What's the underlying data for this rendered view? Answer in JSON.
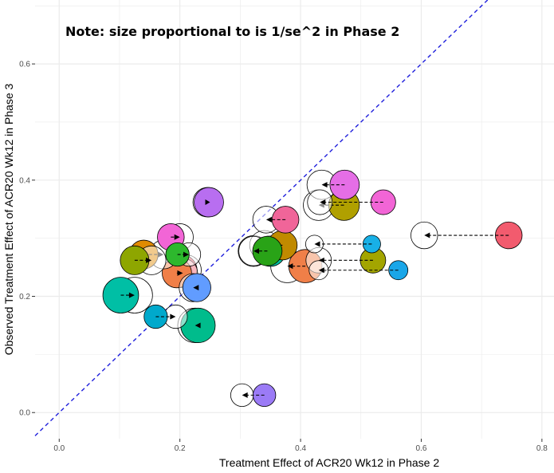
{
  "chart_data": {
    "type": "scatter",
    "title": "",
    "annotation": "Note: size proportional to is 1/se^2 in Phase 2",
    "xlabel": "Treatment Effect of ACR20 Wk12 in Phase 2",
    "ylabel": "Observed Treatment Effect of ACR20 Wk12 in Phase 3",
    "xlim": [
      -0.04,
      0.82
    ],
    "ylim": [
      -0.045,
      0.71
    ],
    "x_ticks": [
      0.0,
      0.2,
      0.4,
      0.6,
      0.8
    ],
    "x_tick_labels": [
      "0.0",
      "0.2",
      "0.4",
      "0.6",
      "0.8"
    ],
    "y_ticks": [
      0.0,
      0.2,
      0.4,
      0.6
    ],
    "y_tick_labels": [
      "0.0",
      "0.2",
      "0.4",
      "0.6"
    ],
    "grid": true,
    "legend": "none",
    "reference_line": {
      "type": "identity",
      "slope": 1,
      "intercept": 0,
      "style": "dashed",
      "color": "#1f1fdc"
    },
    "colors": {
      "grid": "#ebebeb",
      "arrow": "#000000",
      "outline": "#000000"
    },
    "pairs": [
      {
        "phase2_x": 0.745,
        "shrunk_x": 0.605,
        "y": 0.305,
        "size": 1.0,
        "color": "#F25B6E"
      },
      {
        "phase2_x": 0.562,
        "shrunk_x": 0.43,
        "y": 0.245,
        "size": 0.45,
        "color": "#1AA6E8"
      },
      {
        "phase2_x": 0.518,
        "shrunk_x": 0.423,
        "y": 0.29,
        "size": 0.35,
        "color": "#18B0E6"
      },
      {
        "phase2_x": 0.52,
        "shrunk_x": 0.43,
        "y": 0.262,
        "size": 0.9,
        "color": "#A3A500"
      },
      {
        "phase2_x": 0.537,
        "shrunk_x": 0.432,
        "y": 0.362,
        "size": 0.85,
        "color": "#F265D6"
      },
      {
        "phase2_x": 0.473,
        "shrunk_x": 0.435,
        "y": 0.392,
        "size": 1.2,
        "color": "#E56EE6"
      },
      {
        "phase2_x": 0.472,
        "shrunk_x": 0.43,
        "y": 0.357,
        "size": 1.3,
        "color": "#B0A000"
      },
      {
        "phase2_x": 0.408,
        "shrunk_x": 0.378,
        "y": 0.252,
        "size": 1.5,
        "color": "#F07F48"
      },
      {
        "phase2_x": 0.37,
        "shrunk_x": 0.34,
        "y": 0.288,
        "size": 1.2,
        "color": "#C08A00"
      },
      {
        "phase2_x": 0.375,
        "shrunk_x": 0.343,
        "y": 0.332,
        "size": 1.0,
        "color": "#F06599"
      },
      {
        "phase2_x": 0.35,
        "shrunk_x": 0.322,
        "y": 0.278,
        "size": 1.3,
        "color": "#00C1A4"
      },
      {
        "phase2_x": 0.345,
        "shrunk_x": 0.322,
        "y": 0.278,
        "size": 1.2,
        "color": "#29A317"
      },
      {
        "phase2_x": 0.34,
        "shrunk_x": 0.303,
        "y": 0.03,
        "size": 0.7,
        "color": "#9B7BF6"
      },
      {
        "phase2_x": 0.248,
        "shrunk_x": 0.246,
        "y": 0.362,
        "size": 1.2,
        "color": "#B86EF0"
      },
      {
        "phase2_x": 0.23,
        "shrunk_x": 0.225,
        "y": 0.15,
        "size": 1.6,
        "color": "#00BC8C"
      },
      {
        "phase2_x": 0.228,
        "shrunk_x": 0.222,
        "y": 0.215,
        "size": 1.1,
        "color": "#619CFF"
      },
      {
        "phase2_x": 0.196,
        "shrunk_x": 0.215,
        "y": 0.272,
        "size": 0.75,
        "color": "#2DB82D"
      },
      {
        "phase2_x": 0.203,
        "shrunk_x": 0.21,
        "y": 0.245,
        "size": 1.3,
        "color": "#F25B6E"
      },
      {
        "phase2_x": 0.195,
        "shrunk_x": 0.205,
        "y": 0.24,
        "size": 1.2,
        "color": "#F07F48"
      },
      {
        "phase2_x": 0.185,
        "shrunk_x": 0.2,
        "y": 0.302,
        "size": 1.0,
        "color": "#F265D6"
      },
      {
        "phase2_x": 0.16,
        "shrunk_x": 0.193,
        "y": 0.165,
        "size": 0.75,
        "color": "#00A9CC"
      },
      {
        "phase2_x": 0.14,
        "shrunk_x": 0.173,
        "y": 0.272,
        "size": 1.15,
        "color": "#E08A00"
      },
      {
        "phase2_x": 0.125,
        "shrunk_x": 0.153,
        "y": 0.262,
        "size": 1.15,
        "color": "#8EA600"
      },
      {
        "phase2_x": 0.102,
        "shrunk_x": 0.125,
        "y": 0.202,
        "size": 1.7,
        "color": "#00BFA5"
      }
    ]
  }
}
